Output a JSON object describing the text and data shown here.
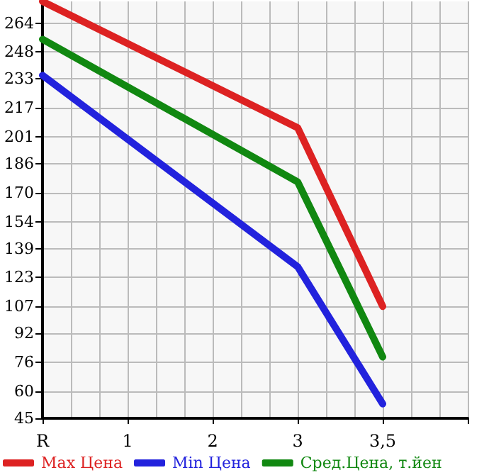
{
  "chart_data": {
    "type": "line",
    "categories": [
      "R",
      "1",
      "2",
      "3",
      "3,5",
      null
    ],
    "series": [
      {
        "name": "Max Цена",
        "color": "#dd2222",
        "values": [
          276,
          null,
          null,
          206,
          107,
          null
        ]
      },
      {
        "name": "Min Цена",
        "color": "#2222dd",
        "values": [
          235,
          null,
          null,
          129,
          53,
          null
        ]
      },
      {
        "name": "Сред.Цена, т.йен",
        "color": "#118811",
        "values": [
          255,
          null,
          null,
          176,
          79,
          null
        ]
      }
    ],
    "ylim": [
      45,
      276
    ],
    "yticks": [
      45,
      60,
      76,
      92,
      107,
      123,
      139,
      154,
      170,
      186,
      201,
      217,
      233,
      248,
      264
    ],
    "grid": true,
    "legend": "bottom",
    "marker": "none",
    "line_style": "solid"
  }
}
